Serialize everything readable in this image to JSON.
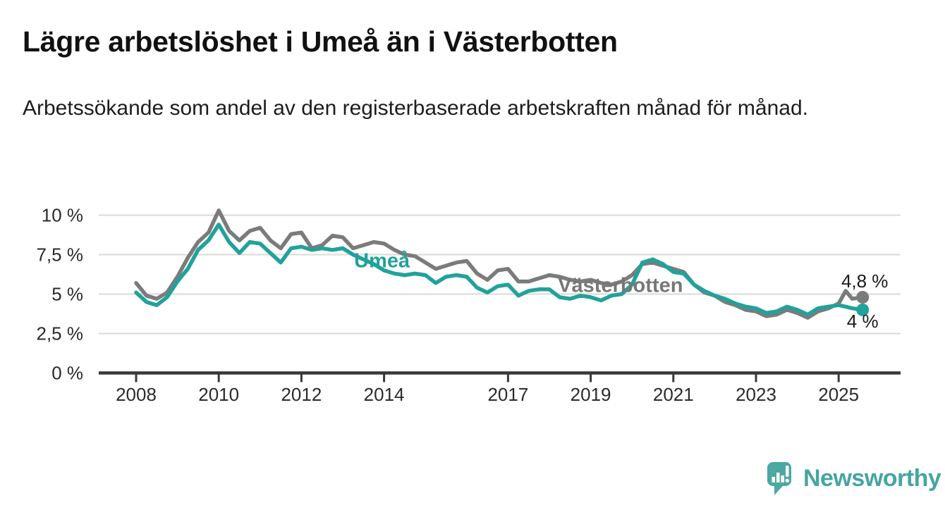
{
  "page": {
    "title": "Lägre arbetslöshet i Umeå än i Västerbotten",
    "subtitle": "Arbetssökande som andel av den registerbaserade arbetskraften månad för månad."
  },
  "branding": {
    "wordmark": "Newsworthy",
    "logo_icon": "speech-bubble-bar-chart-icon",
    "brand_color": "#4ba8a3"
  },
  "chart_data": {
    "type": "line",
    "title": "Lägre arbetslöshet i Umeå än i Västerbotten",
    "subtitle": "Arbetssökande som andel av den registerbaserade arbetskraften månad för månad.",
    "unit": "%",
    "grid": true,
    "legend": "inline-labels",
    "ylim": [
      0,
      10.5
    ],
    "xlim": [
      2007.1,
      2026.5
    ],
    "y_ticks": [
      {
        "v": 0,
        "label": "0 %"
      },
      {
        "v": 2.5,
        "label": "2,5 %"
      },
      {
        "v": 5,
        "label": "5 %"
      },
      {
        "v": 7.5,
        "label": "7,5 %"
      },
      {
        "v": 10,
        "label": "10 %"
      }
    ],
    "x_ticks": [
      {
        "v": 2008,
        "label": "2008"
      },
      {
        "v": 2010,
        "label": "2010"
      },
      {
        "v": 2012,
        "label": "2012"
      },
      {
        "v": 2014,
        "label": "2014"
      },
      {
        "v": 2017,
        "label": "2017"
      },
      {
        "v": 2019,
        "label": "2019"
      },
      {
        "v": 2021,
        "label": "2021"
      },
      {
        "v": 2023,
        "label": "2023"
      },
      {
        "v": 2025,
        "label": "2025"
      }
    ],
    "x": [
      2008,
      2008.25,
      2008.5,
      2008.75,
      2009,
      2009.25,
      2009.5,
      2009.75,
      2010,
      2010.25,
      2010.5,
      2010.75,
      2011,
      2011.25,
      2011.5,
      2011.75,
      2012,
      2012.25,
      2012.5,
      2012.75,
      2013,
      2013.25,
      2013.5,
      2013.75,
      2014,
      2014.25,
      2014.5,
      2014.75,
      2015,
      2015.25,
      2015.5,
      2015.75,
      2016,
      2016.25,
      2016.5,
      2016.75,
      2017,
      2017.25,
      2017.5,
      2017.75,
      2018,
      2018.25,
      2018.5,
      2018.75,
      2019,
      2019.25,
      2019.5,
      2019.75,
      2020,
      2020.25,
      2020.5,
      2020.75,
      2021,
      2021.25,
      2021.5,
      2021.75,
      2022,
      2022.25,
      2022.5,
      2022.75,
      2023,
      2023.25,
      2023.5,
      2023.75,
      2024,
      2024.25,
      2024.5,
      2024.75,
      2025,
      2025.17,
      2025.33,
      2025.58
    ],
    "series": [
      {
        "name": "Västerbotten",
        "slug": "vasterbotten",
        "color": "#7b7b7b",
        "end_label": "4,8 %",
        "end_value": 4.8,
        "values": [
          5.7,
          4.9,
          4.7,
          5.1,
          6.1,
          7.3,
          8.3,
          8.9,
          10.3,
          9.0,
          8.4,
          9.0,
          9.2,
          8.4,
          7.9,
          8.8,
          8.9,
          7.9,
          8.1,
          8.7,
          8.6,
          7.9,
          8.1,
          8.3,
          8.2,
          7.8,
          7.5,
          7.4,
          7.0,
          6.6,
          6.8,
          7.0,
          7.1,
          6.3,
          5.9,
          6.5,
          6.6,
          5.8,
          5.8,
          6.0,
          6.2,
          6.1,
          5.9,
          5.8,
          5.9,
          5.7,
          5.6,
          5.8,
          6.2,
          6.9,
          7.0,
          6.8,
          6.6,
          6.4,
          5.6,
          5.1,
          4.9,
          4.5,
          4.3,
          4.0,
          3.9,
          3.6,
          3.7,
          4.0,
          3.8,
          3.5,
          3.9,
          4.1,
          4.4,
          5.2,
          4.7,
          4.8
        ]
      },
      {
        "name": "Umeå",
        "slug": "umea",
        "color": "#21a29b",
        "end_label": "4 %",
        "end_value": 4.0,
        "values": [
          5.1,
          4.5,
          4.3,
          4.8,
          5.8,
          6.6,
          7.8,
          8.4,
          9.4,
          8.3,
          7.6,
          8.3,
          8.2,
          7.6,
          7.0,
          7.9,
          8.0,
          7.8,
          7.9,
          7.8,
          7.9,
          7.5,
          7.2,
          6.9,
          6.5,
          6.3,
          6.2,
          6.3,
          6.2,
          5.7,
          6.1,
          6.2,
          6.1,
          5.4,
          5.1,
          5.5,
          5.6,
          4.9,
          5.2,
          5.3,
          5.3,
          4.8,
          4.7,
          4.9,
          4.8,
          4.6,
          4.9,
          5.0,
          5.6,
          7.0,
          7.2,
          6.9,
          6.4,
          6.3,
          5.6,
          5.2,
          4.9,
          4.7,
          4.4,
          4.2,
          4.1,
          3.8,
          3.9,
          4.2,
          4.0,
          3.7,
          4.1,
          4.2,
          4.3,
          4.2,
          4.1,
          4.0
        ]
      }
    ],
    "inline_labels": [
      {
        "text": "Umeå",
        "slug": "umea",
        "x": 2013.95,
        "y": 7.15,
        "color": "#21a29b"
      },
      {
        "text": "Västerbotten",
        "slug": "vasterbotten",
        "x": 2019.72,
        "y": 5.58,
        "color": "#777777"
      }
    ],
    "end_label_color": "#1a1a1a"
  }
}
